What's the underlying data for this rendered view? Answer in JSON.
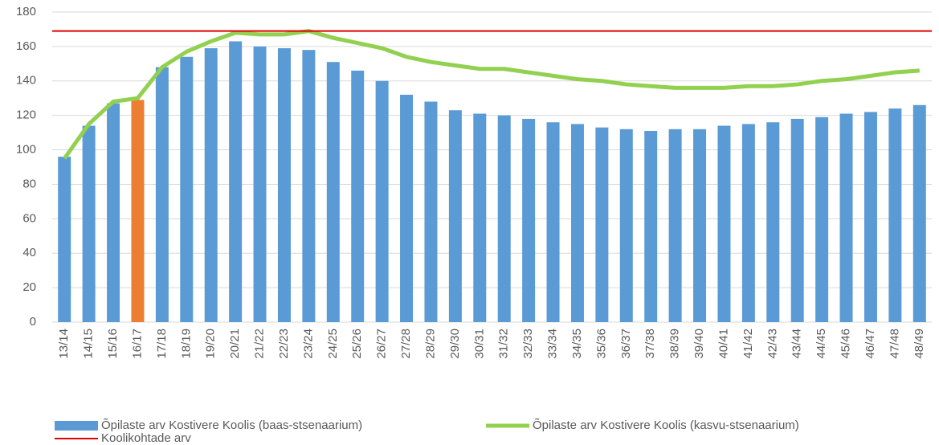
{
  "chart_data": {
    "type": "bar",
    "categories": [
      "13/14",
      "14/15",
      "15/16",
      "16/17",
      "17/18",
      "18/19",
      "19/20",
      "20/21",
      "21/22",
      "22/23",
      "23/24",
      "24/25",
      "25/26",
      "26/27",
      "27/28",
      "28/29",
      "29/30",
      "30/31",
      "31/32",
      "32/33",
      "33/34",
      "34/35",
      "35/36",
      "36/37",
      "37/38",
      "38/39",
      "39/40",
      "40/41",
      "41/42",
      "42/43",
      "43/44",
      "44/45",
      "45/46",
      "46/47",
      "47/48",
      "48/49"
    ],
    "series": [
      {
        "name": "Õpilaste arv Kostivere Koolis (baas-stsenaarium)",
        "type": "bar",
        "color": "#5b9bd5",
        "colors": [
          "#5b9bd5",
          "#5b9bd5",
          "#5b9bd5",
          "#ed7d31",
          "#5b9bd5",
          "#5b9bd5",
          "#5b9bd5",
          "#5b9bd5",
          "#5b9bd5",
          "#5b9bd5",
          "#5b9bd5",
          "#5b9bd5",
          "#5b9bd5",
          "#5b9bd5",
          "#5b9bd5",
          "#5b9bd5",
          "#5b9bd5",
          "#5b9bd5",
          "#5b9bd5",
          "#5b9bd5",
          "#5b9bd5",
          "#5b9bd5",
          "#5b9bd5",
          "#5b9bd5",
          "#5b9bd5",
          "#5b9bd5",
          "#5b9bd5",
          "#5b9bd5",
          "#5b9bd5",
          "#5b9bd5",
          "#5b9bd5",
          "#5b9bd5",
          "#5b9bd5",
          "#5b9bd5",
          "#5b9bd5",
          "#5b9bd5"
        ],
        "values": [
          96,
          114,
          127,
          129,
          148,
          154,
          159,
          163,
          160,
          159,
          158,
          151,
          146,
          140,
          132,
          128,
          123,
          121,
          120,
          118,
          116,
          115,
          113,
          112,
          111,
          112,
          112,
          114,
          115,
          116,
          118,
          119,
          121,
          122,
          124,
          126
        ]
      },
      {
        "name": "Õpilaste arv Kostivere Koolis (kasvu-stsenaarium)",
        "type": "line",
        "color": "#92d050",
        "values": [
          95,
          115,
          128,
          130,
          148,
          157,
          163,
          168,
          167,
          167,
          169,
          165,
          162,
          159,
          154,
          151,
          149,
          147,
          147,
          145,
          143,
          141,
          140,
          138,
          137,
          136,
          136,
          136,
          137,
          137,
          138,
          140,
          141,
          143,
          145,
          146
        ]
      },
      {
        "name": "Koolikohtade arv",
        "type": "line",
        "color": "#e00000",
        "values": [
          169,
          169,
          169,
          169,
          169,
          169,
          169,
          169,
          169,
          169,
          169,
          169,
          169,
          169,
          169,
          169,
          169,
          169,
          169,
          169,
          169,
          169,
          169,
          169,
          169,
          169,
          169,
          169,
          169,
          169,
          169,
          169,
          169,
          169,
          169,
          169
        ]
      }
    ],
    "ylim": [
      0,
      180
    ],
    "yticks": [
      0,
      20,
      40,
      60,
      80,
      100,
      120,
      140,
      160,
      180
    ],
    "grid": true
  }
}
